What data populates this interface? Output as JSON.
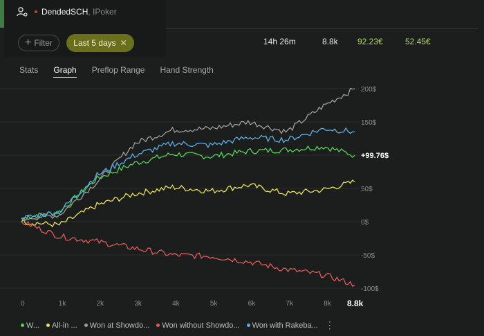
{
  "player": {
    "name": "DendedSCH",
    "room": ", IPoker",
    "status_color": "#c94040"
  },
  "filters": {
    "filter_label": "Filter",
    "chip_label": "Last 5 days"
  },
  "summary": {
    "duration": "14h 26m",
    "hands": "8.8k",
    "won": "92.23€",
    "rake": "52.45€"
  },
  "tabs": [
    "Stats",
    "Graph",
    "Preflop Range",
    "Hand Strength"
  ],
  "active_tab": "Graph",
  "chart_data": {
    "type": "line",
    "x": [
      0,
      1000,
      2000,
      3000,
      4000,
      5000,
      6000,
      7000,
      8000,
      8800
    ],
    "x_tick_labels": [
      "0",
      "1k",
      "2k",
      "3k",
      "4k",
      "5k",
      "6k",
      "7k",
      "8k"
    ],
    "x_end_label": "8.8k",
    "xlim": [
      0,
      8800
    ],
    "ylim": [
      -110,
      210
    ],
    "y_tick_values": [
      200,
      150,
      100,
      50,
      0,
      -50,
      -100
    ],
    "y_tick_labels": [
      "200$",
      "150$",
      "",
      "50$",
      "0$",
      "-50$",
      "-100$"
    ],
    "end_value_label": "+99.76$",
    "grid": "horizontal",
    "series": [
      {
        "name": "W...",
        "color": "#56d45a",
        "values": [
          5,
          15,
          65,
          88,
          102,
          98,
          106,
          108,
          113,
          99.76
        ]
      },
      {
        "name": "All-in ...",
        "color": "#e9e35a",
        "values": [
          0,
          -5,
          25,
          42,
          52,
          46,
          55,
          42,
          48,
          60
        ]
      },
      {
        "name": "Won at Showdo...",
        "color": "#9e9e9e",
        "values": [
          5,
          10,
          60,
          118,
          138,
          140,
          150,
          135,
          175,
          200
        ]
      },
      {
        "name": "Won without Showdo...",
        "color": "#e05a5a",
        "values": [
          0,
          -22,
          -30,
          -40,
          -50,
          -52,
          -60,
          -72,
          -80,
          -95
        ]
      },
      {
        "name": "Won with Rakeba...",
        "color": "#5ab0e8",
        "values": [
          5,
          15,
          70,
          100,
          118,
          115,
          127,
          123,
          140,
          135
        ]
      }
    ]
  }
}
